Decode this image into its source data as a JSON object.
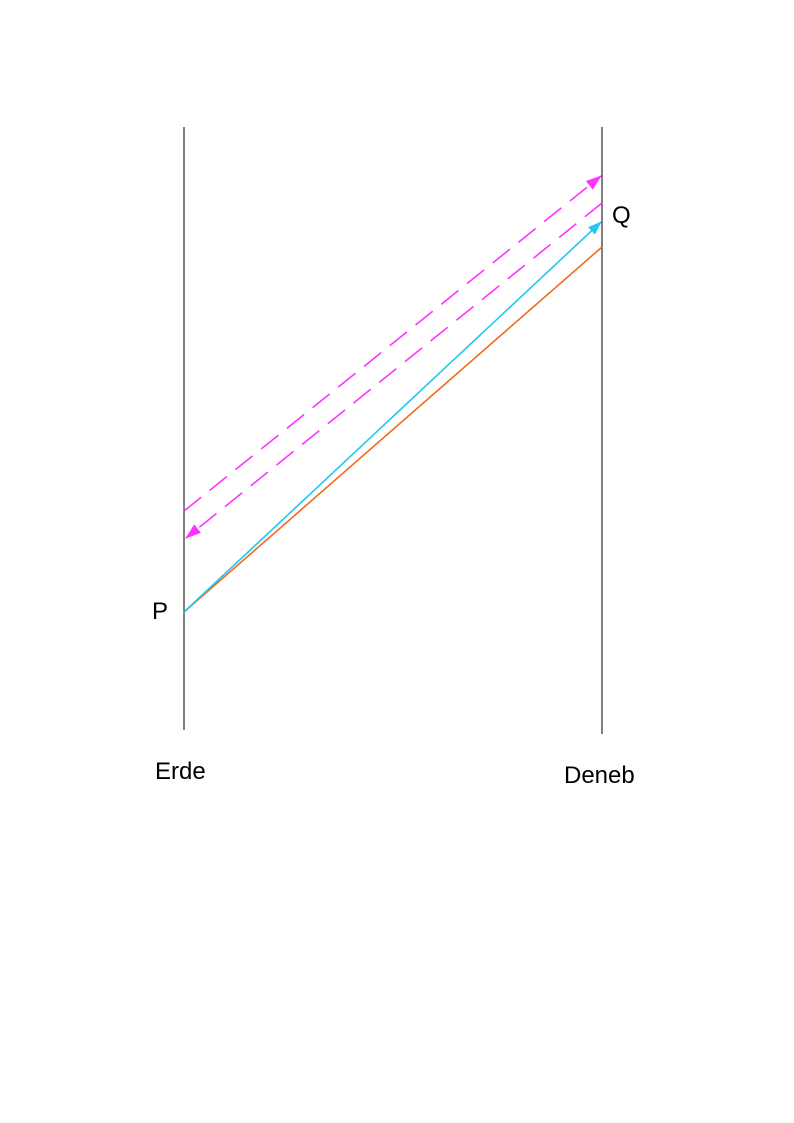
{
  "labels": {
    "point_p": "P",
    "point_q": "Q",
    "worldline_left": "Erde",
    "worldline_right": "Deneb"
  },
  "colors": {
    "worldline": "#000000",
    "orange_line": "#f26b1d",
    "cyan_arrow": "#1ec8f0",
    "magenta_dashed": "#ff33ff"
  }
}
